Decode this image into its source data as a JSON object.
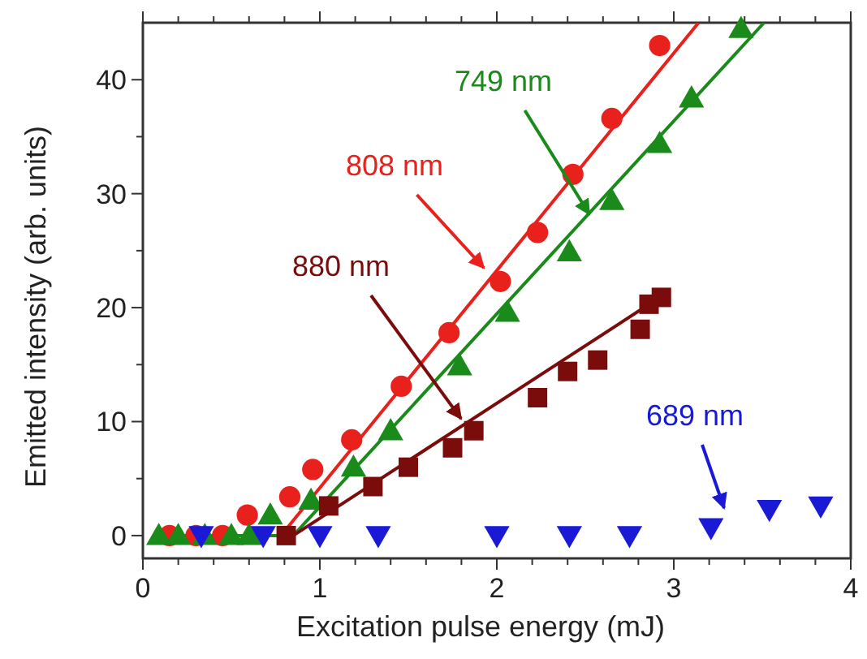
{
  "chart_data": {
    "type": "scatter",
    "xlabel": "Excitation pulse energy (mJ)",
    "ylabel": "Emitted intensity (arb. units)",
    "xlim": [
      0,
      4
    ],
    "ylim": [
      -2,
      45
    ],
    "xticks": [
      0,
      {
        "value": 0.2,
        "label": null
      },
      {
        "value": 0.4,
        "label": null
      },
      {
        "value": 0.6,
        "label": null
      },
      {
        "value": 0.8,
        "label": null
      },
      1,
      {
        "value": 1.2,
        "label": null
      },
      {
        "value": 1.4,
        "label": null
      },
      {
        "value": 1.6,
        "label": null
      },
      {
        "value": 1.8,
        "label": null
      },
      2,
      {
        "value": 2.2,
        "label": null
      },
      {
        "value": 2.4,
        "label": null
      },
      {
        "value": 2.6,
        "label": null
      },
      {
        "value": 2.8,
        "label": null
      },
      3,
      {
        "value": 3.2,
        "label": null
      },
      {
        "value": 3.4,
        "label": null
      },
      {
        "value": 3.6,
        "label": null
      },
      {
        "value": 3.8,
        "label": null
      },
      4
    ],
    "yticks": [
      0,
      {
        "value": 5,
        "label": null
      },
      10,
      {
        "value": 15,
        "label": null
      },
      20,
      {
        "value": 25,
        "label": null
      },
      30,
      {
        "value": 35,
        "label": null
      },
      40
    ],
    "grid": false,
    "series": [
      {
        "name": "808 nm",
        "color": "#e8211d",
        "marker": "circle",
        "x": [
          0.15,
          0.3,
          0.45,
          0.59,
          0.83,
          0.96,
          1.18,
          1.46,
          1.73,
          2.02,
          2.23,
          2.43,
          2.65,
          2.92
        ],
        "values": [
          0,
          0,
          0,
          1.8,
          3.4,
          5.8,
          8.4,
          13.1,
          17.8,
          22.3,
          26.6,
          31.7,
          36.6,
          43
        ]
      },
      {
        "name": "749 nm",
        "color": "#1a8a1a",
        "marker": "triangle",
        "x": [
          0.09,
          0.2,
          0.35,
          0.5,
          0.6,
          0.72,
          0.95,
          1.19,
          1.4,
          1.79,
          2.06,
          2.41,
          2.65,
          2.92,
          3.1,
          3.38
        ],
        "values": [
          0,
          0,
          0,
          0,
          0,
          1.8,
          3.1,
          6,
          9.2,
          14.9,
          19.6,
          24.9,
          29.4,
          34.4,
          38.4,
          44.5
        ]
      },
      {
        "name": "880 nm",
        "color": "#7a0c0c",
        "marker": "square",
        "x": [
          0.81,
          1.05,
          1.3,
          1.5,
          1.75,
          1.87,
          2.23,
          2.4,
          2.57,
          2.81,
          2.86,
          2.93
        ],
        "values": [
          0,
          2.6,
          4.3,
          6,
          7.7,
          9.2,
          12.1,
          14.4,
          15.4,
          18.1,
          20.3,
          20.9
        ]
      },
      {
        "name": "689 nm",
        "color": "#1a1ad6",
        "marker": "triangle-down",
        "x": [
          0.33,
          0.68,
          1,
          1.33,
          2,
          2.41,
          2.75,
          3.21,
          3.54,
          3.83
        ],
        "values": [
          0,
          0,
          0,
          0,
          0,
          0,
          0,
          0.7,
          2.3,
          2.6
        ]
      },
      {
        "type": "line",
        "color": "#e8211d",
        "x": [
          0.1,
          0.78,
          3.14
        ],
        "values": [
          0,
          0,
          45
        ]
      },
      {
        "type": "line",
        "color": "#1a8a1a",
        "x": [
          0.1,
          0.85,
          3.51
        ],
        "values": [
          0,
          0,
          45
        ]
      },
      {
        "type": "line",
        "color": "#7a0c0c",
        "x": [
          0.8,
          0.85,
          2.93
        ],
        "values": [
          0,
          0,
          21
        ]
      }
    ]
  }
}
